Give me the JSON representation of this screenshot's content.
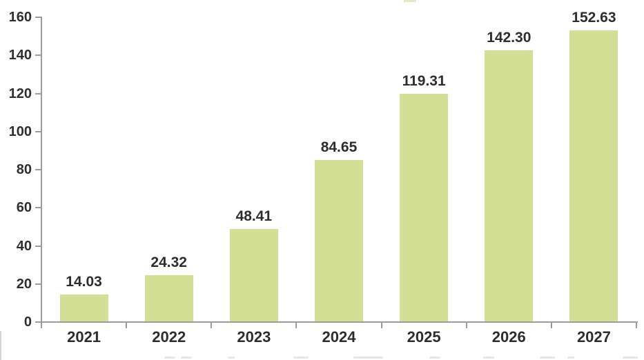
{
  "chart_data": {
    "type": "bar",
    "title": "",
    "xlabel": "",
    "ylabel": "",
    "categories": [
      "2021",
      "2022",
      "2023",
      "2024",
      "2025",
      "2026",
      "2027"
    ],
    "values": [
      14.03,
      24.32,
      48.41,
      84.65,
      119.31,
      142.3,
      152.63
    ],
    "value_labels": [
      "14.03",
      "24.32",
      "48.41",
      "84.65",
      "119.31",
      "142.30",
      "152.63"
    ],
    "ylim": [
      0,
      160
    ],
    "yticks": [
      0,
      20,
      40,
      60,
      80,
      100,
      120,
      140,
      160
    ],
    "ytick_labels": [
      "0",
      "20",
      "40",
      "60",
      "80",
      "100",
      "120",
      "140",
      "160"
    ],
    "grid": false,
    "legend_position": "none",
    "colors": {
      "bar": "#d3df94",
      "axis": "#9b9b9b",
      "text": "#2d2d2d",
      "background": "#ffffff"
    }
  }
}
